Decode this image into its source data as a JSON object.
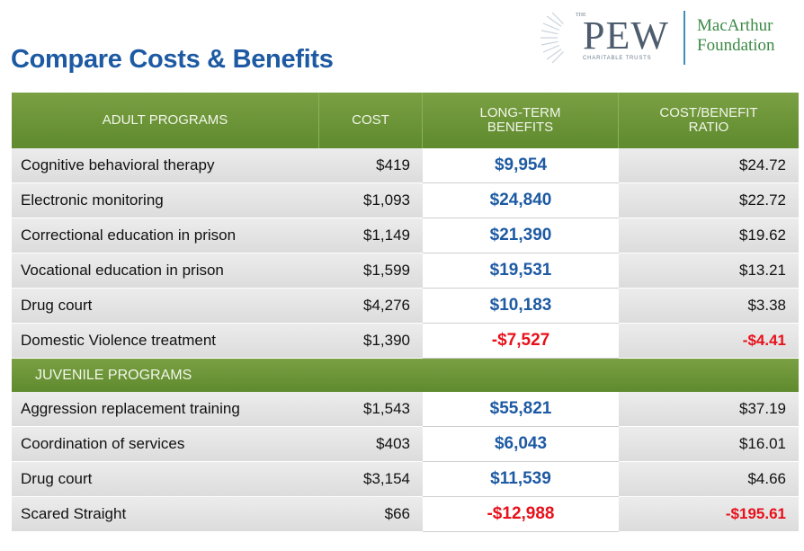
{
  "title": "Compare Costs & Benefits",
  "logos": {
    "pew_the": "THE",
    "pew": "PEW",
    "pew_sub": "CHARITABLE TRUSTS",
    "macarthur_1": "MacArthur",
    "macarthur_2": "Foundation"
  },
  "table": {
    "header": [
      "ADULT PROGRAMS",
      "COST",
      "LONG-TERM BENEFITS",
      "COST/BENEFIT RATIO"
    ],
    "rows": [
      [
        "Cognitive behavioral therapy",
        "$419",
        "$9,954",
        "$24.72"
      ],
      [
        "Electronic monitoring",
        "$1,093",
        "$24,840",
        "$22.72"
      ],
      [
        "Correctional education in prison",
        "$1,149",
        "$21,390",
        "$19.62"
      ],
      [
        "Vocational education in prison",
        "$1,599",
        "$19,531",
        "$13.21"
      ],
      [
        "Drug court",
        "$4,276",
        "$10,183",
        "$3.38"
      ],
      [
        "Domestic Violence treatment",
        "$1,390",
        "-$7,527",
        "-$4.41"
      ]
    ],
    "juvenile_header": "JUVENILE PROGRAMS",
    "juvenile_rows": [
      [
        "Aggression replacement training",
        "$1,543",
        "$55,821",
        "$37.19"
      ],
      [
        "Coordination of services",
        "$403",
        "$6,043",
        "$16.01"
      ],
      [
        "Drug court",
        "$3,154",
        "$11,539",
        "$4.66"
      ],
      [
        "Scared Straight",
        "$66",
        "-$12,988",
        "-$195.61"
      ]
    ]
  }
}
